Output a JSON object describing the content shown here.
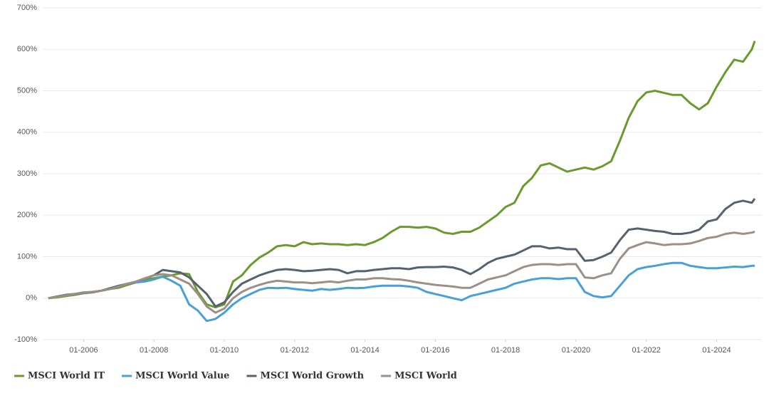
{
  "chart_data": {
    "type": "line",
    "x": [
      "01-2005",
      "04-2005",
      "07-2005",
      "10-2005",
      "01-2006",
      "04-2006",
      "07-2006",
      "10-2006",
      "01-2007",
      "04-2007",
      "07-2007",
      "10-2007",
      "01-2008",
      "04-2008",
      "07-2008",
      "10-2008",
      "01-2009",
      "04-2009",
      "07-2009",
      "10-2009",
      "01-2010",
      "04-2010",
      "07-2010",
      "10-2010",
      "01-2011",
      "04-2011",
      "07-2011",
      "10-2011",
      "01-2012",
      "04-2012",
      "07-2012",
      "10-2012",
      "01-2013",
      "04-2013",
      "07-2013",
      "10-2013",
      "01-2014",
      "04-2014",
      "07-2014",
      "10-2014",
      "01-2015",
      "04-2015",
      "07-2015",
      "10-2015",
      "01-2016",
      "04-2016",
      "07-2016",
      "10-2016",
      "01-2017",
      "04-2017",
      "07-2017",
      "10-2017",
      "01-2018",
      "04-2018",
      "07-2018",
      "10-2018",
      "01-2019",
      "04-2019",
      "07-2019",
      "10-2019",
      "01-2020",
      "04-2020",
      "07-2020",
      "10-2020",
      "01-2021",
      "04-2021",
      "07-2021",
      "10-2021",
      "01-2022",
      "04-2022",
      "07-2022",
      "10-2022",
      "01-2023",
      "04-2023",
      "07-2023",
      "10-2023",
      "01-2024",
      "04-2024",
      "07-2024",
      "10-2024",
      "01-2025",
      "02-2025"
    ],
    "series": [
      {
        "name": "MSCI World IT",
        "color": "#6a9a2e",
        "values": [
          0,
          2,
          5,
          8,
          12,
          15,
          18,
          22,
          25,
          32,
          38,
          45,
          48,
          52,
          55,
          60,
          58,
          15,
          -15,
          -22,
          -15,
          40,
          55,
          80,
          98,
          110,
          125,
          128,
          125,
          135,
          130,
          132,
          130,
          130,
          128,
          130,
          128,
          135,
          145,
          160,
          172,
          172,
          170,
          172,
          168,
          158,
          155,
          160,
          160,
          170,
          185,
          200,
          220,
          230,
          270,
          290,
          320,
          325,
          315,
          305,
          310,
          315,
          310,
          318,
          330,
          380,
          435,
          475,
          496,
          500,
          495,
          490,
          490,
          470,
          455,
          470,
          510,
          545,
          575,
          570,
          600,
          620
        ]
      },
      {
        "name": "MSCI World Value",
        "color": "#4a9fd6",
        "values": [
          0,
          3,
          8,
          10,
          14,
          15,
          18,
          22,
          28,
          35,
          38,
          40,
          45,
          52,
          42,
          30,
          -15,
          -30,
          -55,
          -50,
          -35,
          -15,
          0,
          10,
          20,
          25,
          24,
          25,
          22,
          20,
          18,
          22,
          20,
          22,
          25,
          24,
          25,
          28,
          30,
          30,
          30,
          28,
          25,
          15,
          10,
          5,
          0,
          -5,
          5,
          10,
          15,
          20,
          25,
          35,
          40,
          45,
          48,
          48,
          46,
          48,
          48,
          15,
          5,
          2,
          5,
          30,
          55,
          70,
          75,
          78,
          82,
          85,
          85,
          78,
          75,
          72,
          72,
          74,
          76,
          75,
          78,
          78
        ]
      },
      {
        "name": "MSCI World Growth",
        "color": "#56626e",
        "values": [
          0,
          4,
          8,
          10,
          12,
          14,
          18,
          24,
          30,
          35,
          40,
          48,
          55,
          68,
          65,
          62,
          50,
          30,
          10,
          -20,
          -10,
          15,
          35,
          45,
          55,
          62,
          68,
          70,
          68,
          65,
          66,
          68,
          70,
          68,
          60,
          65,
          65,
          68,
          70,
          72,
          72,
          70,
          74,
          75,
          75,
          76,
          74,
          68,
          58,
          70,
          85,
          95,
          100,
          105,
          115,
          125,
          125,
          120,
          122,
          118,
          118,
          90,
          92,
          100,
          110,
          140,
          165,
          168,
          165,
          162,
          160,
          155,
          155,
          158,
          165,
          185,
          190,
          215,
          230,
          235,
          230,
          240
        ]
      },
      {
        "name": "MSCI World",
        "color": "#9c8f86",
        "values": [
          0,
          3,
          7,
          10,
          13,
          15,
          18,
          22,
          28,
          35,
          40,
          48,
          55,
          58,
          55,
          45,
          35,
          10,
          -20,
          -35,
          -25,
          0,
          15,
          25,
          32,
          38,
          42,
          40,
          38,
          38,
          36,
          38,
          40,
          38,
          42,
          45,
          45,
          48,
          48,
          46,
          45,
          42,
          38,
          35,
          32,
          30,
          28,
          25,
          25,
          35,
          45,
          50,
          55,
          65,
          75,
          80,
          82,
          82,
          80,
          82,
          82,
          50,
          48,
          55,
          60,
          95,
          120,
          128,
          135,
          132,
          128,
          130,
          130,
          132,
          138,
          145,
          148,
          155,
          158,
          155,
          158,
          160
        ]
      }
    ],
    "xlim": [
      "01-2005",
      "02-2025"
    ],
    "xticks": [
      "01-2006",
      "01-2008",
      "01-2010",
      "01-2012",
      "01-2014",
      "01-2016",
      "01-2018",
      "01-2020",
      "01-2022",
      "01-2024"
    ],
    "ylim": [
      -100,
      700
    ],
    "yticks": [
      {
        "value": -100,
        "label": "-100%"
      },
      {
        "value": 0,
        "label": "0%"
      },
      {
        "value": 100,
        "label": "100%"
      },
      {
        "value": 200,
        "label": "200%"
      },
      {
        "value": 300,
        "label": "300%"
      },
      {
        "value": 400,
        "label": "400%"
      },
      {
        "value": 500,
        "label": "500%"
      },
      {
        "value": 600,
        "label": "600%"
      },
      {
        "value": 700,
        "label": "700%"
      }
    ],
    "grid": true
  }
}
